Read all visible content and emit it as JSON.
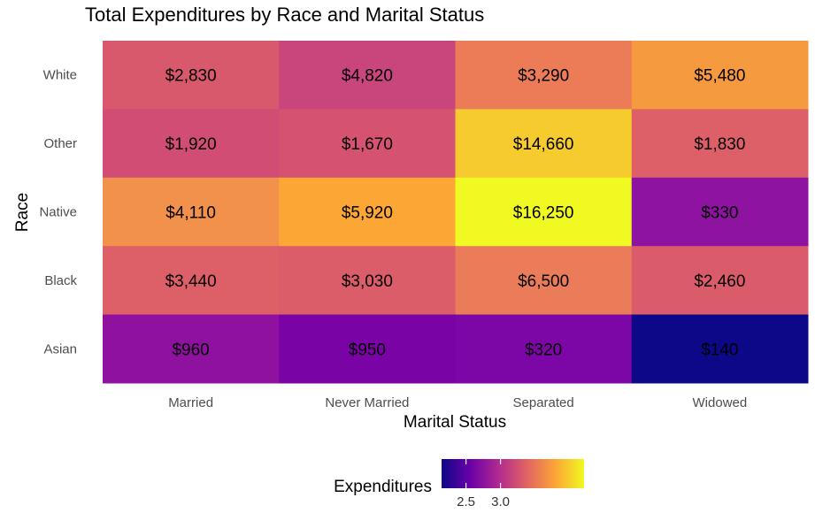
{
  "chart_data": {
    "type": "heatmap",
    "title": "Total Expenditures by Race and Marital Status",
    "xlabel": "Marital Status",
    "ylabel": "Race",
    "x_categories": [
      "Married",
      "Never Married",
      "Separated",
      "Widowed"
    ],
    "y_categories": [
      "White",
      "Other",
      "Native",
      "Black",
      "Asian"
    ],
    "cells": [
      {
        "race": "White",
        "status": "Married",
        "label": "$2,830",
        "value": 2830,
        "color": "#d8596c"
      },
      {
        "race": "White",
        "status": "Never Married",
        "label": "$4,820",
        "value": 4820,
        "color": "#c9467d"
      },
      {
        "race": "White",
        "status": "Separated",
        "label": "$3,290",
        "value": 3290,
        "color": "#ec7c58"
      },
      {
        "race": "White",
        "status": "Widowed",
        "label": "$5,480",
        "value": 5480,
        "color": "#f69a40"
      },
      {
        "race": "Other",
        "status": "Married",
        "label": "$1,920",
        "value": 1920,
        "color": "#d14d74"
      },
      {
        "race": "Other",
        "status": "Never Married",
        "label": "$1,670",
        "value": 1670,
        "color": "#d55370"
      },
      {
        "race": "Other",
        "status": "Separated",
        "label": "$14,660",
        "value": 14660,
        "color": "#f5cb2e"
      },
      {
        "race": "Other",
        "status": "Widowed",
        "label": "$1,830",
        "value": 1830,
        "color": "#dd5f68"
      },
      {
        "race": "Native",
        "status": "Married",
        "label": "$4,110",
        "value": 4110,
        "color": "#f2914c"
      },
      {
        "race": "Native",
        "status": "Never Married",
        "label": "$5,920",
        "value": 5920,
        "color": "#fca636"
      },
      {
        "race": "Native",
        "status": "Separated",
        "label": "$16,250",
        "value": 16250,
        "color": "#f0f921"
      },
      {
        "race": "Native",
        "status": "Widowed",
        "label": "$330",
        "value": 330,
        "color": "#8d13a0"
      },
      {
        "race": "Black",
        "status": "Married",
        "label": "$3,440",
        "value": 3440,
        "color": "#dd5f68"
      },
      {
        "race": "Black",
        "status": "Never Married",
        "label": "$3,030",
        "value": 3030,
        "color": "#db5d69"
      },
      {
        "race": "Black",
        "status": "Separated",
        "label": "$6,500",
        "value": 6500,
        "color": "#eb7c5a"
      },
      {
        "race": "Black",
        "status": "Widowed",
        "label": "$2,460",
        "value": 2460,
        "color": "#da5b69"
      },
      {
        "race": "Asian",
        "status": "Married",
        "label": "$960",
        "value": 960,
        "color": "#8e129f"
      },
      {
        "race": "Asian",
        "status": "Never Married",
        "label": "$950",
        "value": 950,
        "color": "#7a03a6"
      },
      {
        "race": "Asian",
        "status": "Separated",
        "label": "$320",
        "value": 320,
        "color": "#7d06a6"
      },
      {
        "race": "Asian",
        "status": "Widowed",
        "label": "$140",
        "value": 140,
        "color": "#0d0887"
      }
    ],
    "legend": {
      "title": "Expenditures",
      "placement": "bottom",
      "scale": "log10",
      "range": [
        2.146,
        4.211
      ],
      "ticks": [
        2.5,
        3.0
      ],
      "colormap": [
        "#0d0887",
        "#6a00a8",
        "#b12a90",
        "#e16462",
        "#fca636",
        "#f0f921"
      ]
    },
    "grid": false
  }
}
